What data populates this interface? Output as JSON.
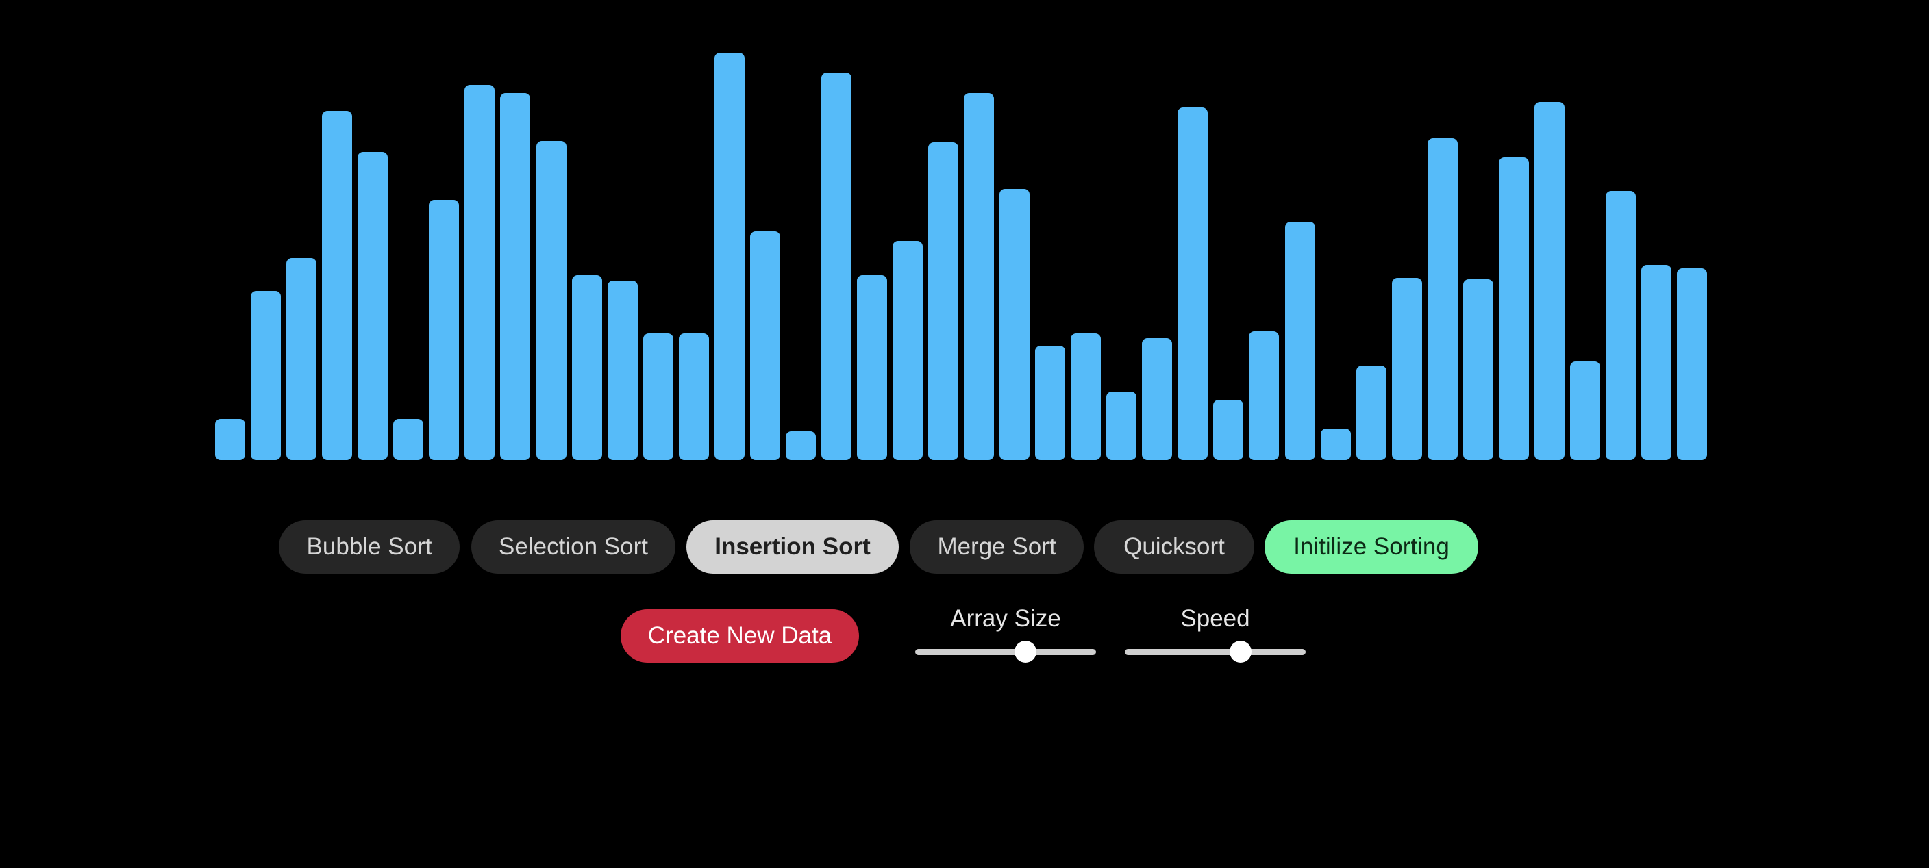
{
  "visualizer": {
    "bar_color": "#56bbf9",
    "values": [
      60,
      247,
      295,
      510,
      450,
      60,
      380,
      548,
      536,
      466,
      270,
      262,
      185,
      185,
      595,
      334,
      42,
      566,
      270,
      320,
      464,
      536,
      396,
      167,
      185,
      100,
      178,
      515,
      88,
      188,
      348,
      46,
      138,
      266,
      470,
      264,
      442,
      523,
      144,
      393,
      285,
      280
    ],
    "max_value": 600
  },
  "algorithms": [
    {
      "label": "Bubble Sort",
      "state": "default"
    },
    {
      "label": "Selection Sort",
      "state": "default"
    },
    {
      "label": "Insertion Sort",
      "state": "selected"
    },
    {
      "label": "Merge Sort",
      "state": "default"
    },
    {
      "label": "Quicksort",
      "state": "default"
    },
    {
      "label": "Initilize Sorting",
      "state": "action"
    }
  ],
  "controls": {
    "create_label": "Create New Data",
    "array_size": {
      "label": "Array Size",
      "value_fraction": 0.61
    },
    "speed": {
      "label": "Speed",
      "value_fraction": 0.64
    }
  },
  "colors": {
    "background": "#000000",
    "pill_dark": "#262626",
    "pill_selected": "#d3d3d3",
    "pill_action": "#78f4a5",
    "create_button": "#c92a3f",
    "slider_track": "#cfcfcf",
    "slider_thumb": "#ffffff"
  }
}
